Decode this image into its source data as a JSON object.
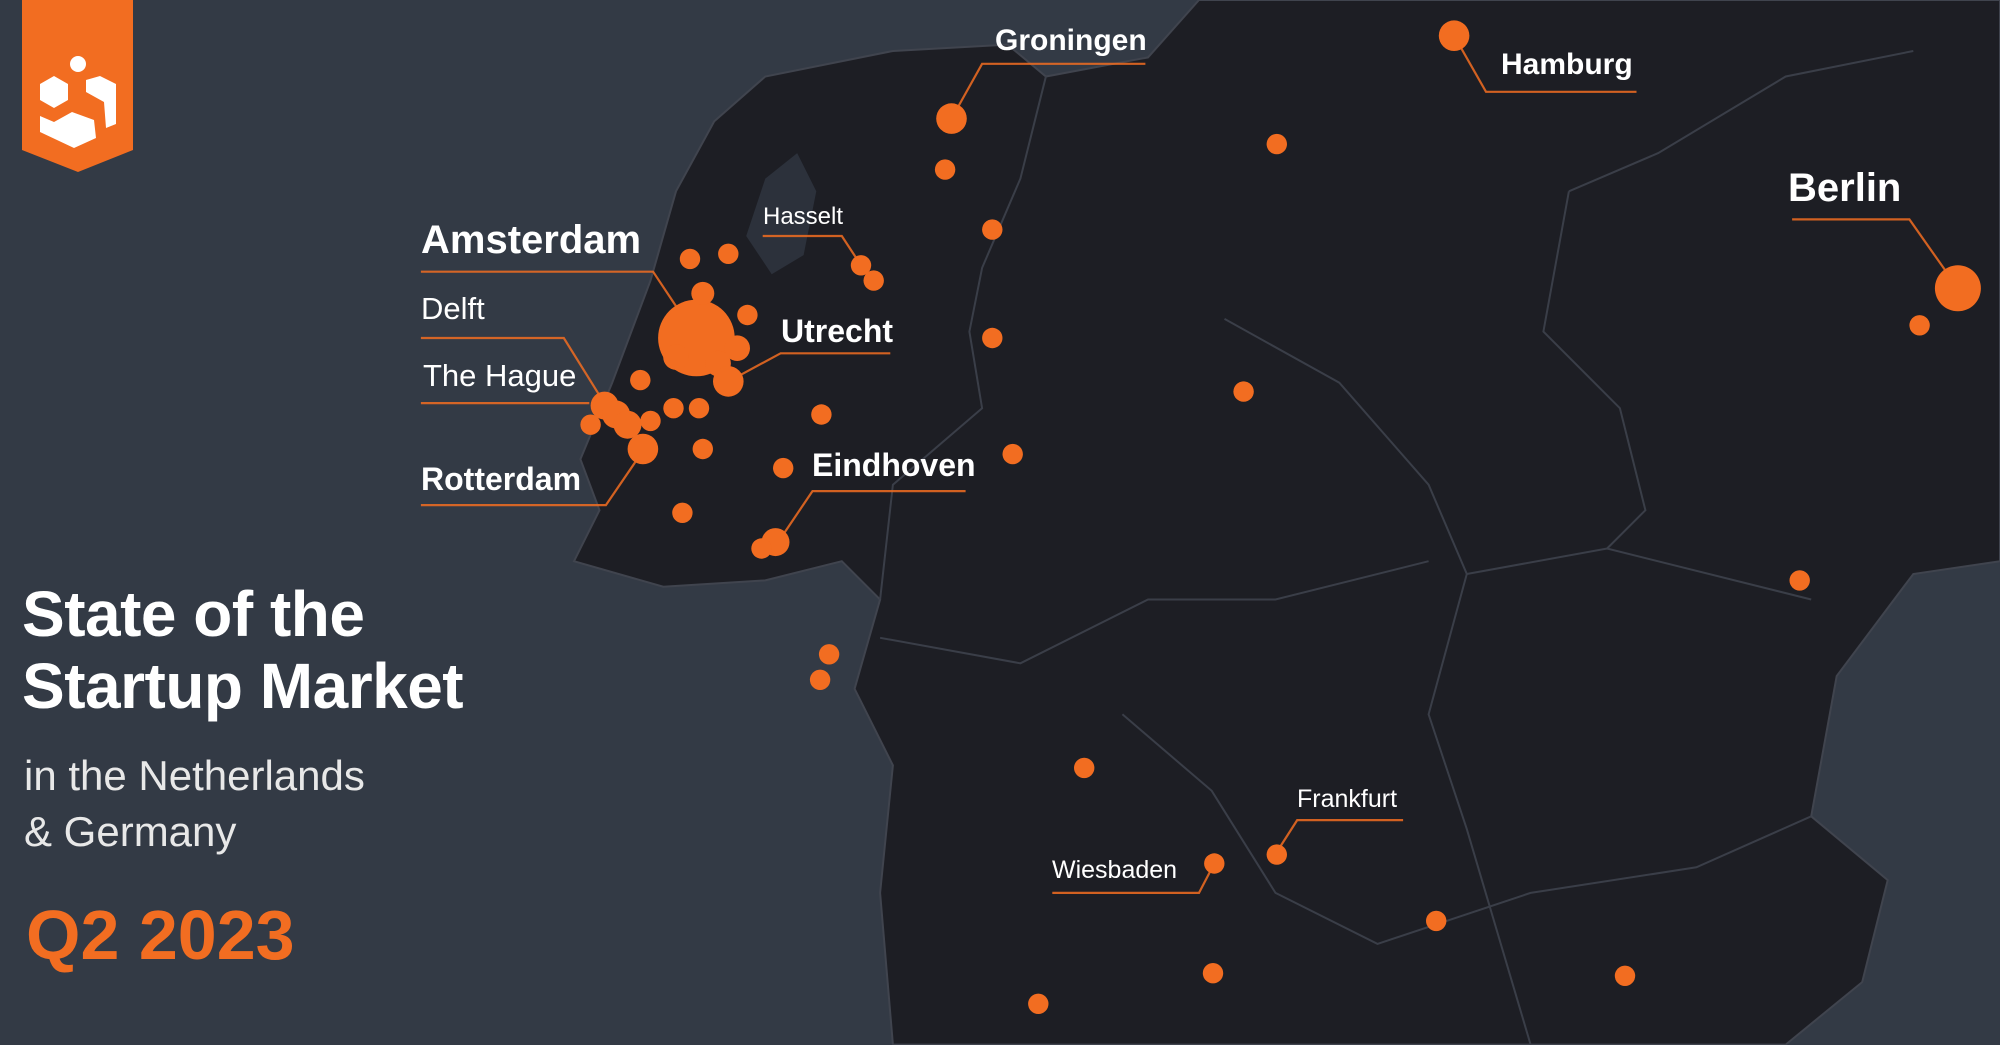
{
  "colors": {
    "accent": "#f26d21",
    "sea": "#333a45",
    "land": "#1d1e24",
    "border": "#3a3d46",
    "text": "#ffffff"
  },
  "logo": {
    "name": "logo-icon"
  },
  "title": {
    "line1": "State of the",
    "line2": "Startup Market",
    "sub1": "in the Netherlands",
    "sub2": "& Germany",
    "period": "Q2 2023"
  },
  "cities": [
    {
      "name": "Groningen",
      "weight": "bold"
    },
    {
      "name": "Hamburg",
      "weight": "bold"
    },
    {
      "name": "Berlin",
      "weight": "bold"
    },
    {
      "name": "Amsterdam",
      "weight": "bold"
    },
    {
      "name": "Delft",
      "weight": "normal"
    },
    {
      "name": "The Hague",
      "weight": "normal"
    },
    {
      "name": "Rotterdam",
      "weight": "bold"
    },
    {
      "name": "Hasselt",
      "weight": "normal"
    },
    {
      "name": "Utrecht",
      "weight": "bold"
    },
    {
      "name": "Eindhoven",
      "weight": "bold"
    },
    {
      "name": "Frankfurt",
      "weight": "normal"
    },
    {
      "name": "Wiesbaden",
      "weight": "normal"
    }
  ]
}
